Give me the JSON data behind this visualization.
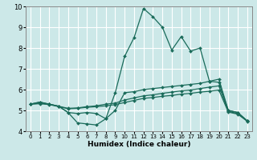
{
  "xlabel": "Humidex (Indice chaleur)",
  "x_values": [
    0,
    1,
    2,
    3,
    4,
    5,
    6,
    7,
    8,
    9,
    10,
    11,
    12,
    13,
    14,
    15,
    16,
    17,
    18,
    19,
    20,
    21,
    22,
    23
  ],
  "line1": [
    5.3,
    5.4,
    5.3,
    5.2,
    4.9,
    4.4,
    4.35,
    4.3,
    4.6,
    5.85,
    7.6,
    8.5,
    9.9,
    9.5,
    9.0,
    7.9,
    8.55,
    7.85,
    8.0,
    6.4,
    6.35,
    5.0,
    4.9,
    4.5
  ],
  "line2": [
    5.3,
    5.4,
    5.3,
    5.2,
    4.9,
    4.85,
    4.9,
    4.85,
    4.6,
    5.0,
    5.85,
    5.9,
    6.0,
    6.05,
    6.1,
    6.15,
    6.2,
    6.25,
    6.3,
    6.4,
    6.5,
    5.0,
    4.9,
    4.5
  ],
  "line3": [
    5.3,
    5.35,
    5.3,
    5.2,
    5.1,
    5.12,
    5.18,
    5.22,
    5.3,
    5.35,
    5.5,
    5.6,
    5.7,
    5.75,
    5.82,
    5.88,
    5.94,
    5.98,
    6.05,
    6.12,
    6.18,
    4.95,
    4.85,
    4.5
  ],
  "line4": [
    5.3,
    5.32,
    5.28,
    5.18,
    5.08,
    5.1,
    5.15,
    5.18,
    5.22,
    5.28,
    5.38,
    5.48,
    5.58,
    5.62,
    5.68,
    5.72,
    5.78,
    5.82,
    5.88,
    5.92,
    5.98,
    4.92,
    4.82,
    4.48
  ],
  "line_color": "#1a6b5a",
  "bg_color": "#cce8e8",
  "grid_color": "#ffffff",
  "ylim": [
    4.0,
    10.0
  ],
  "xlim_min": -0.5,
  "xlim_max": 23.5,
  "yticks": [
    4,
    5,
    6,
    7,
    8,
    9,
    10
  ],
  "xticks": [
    0,
    1,
    2,
    3,
    4,
    5,
    6,
    7,
    8,
    9,
    10,
    11,
    12,
    13,
    14,
    15,
    16,
    17,
    18,
    19,
    20,
    21,
    22,
    23
  ],
  "tick_fontsize": 5.0,
  "xlabel_fontsize": 6.5,
  "ytick_fontsize": 6.0
}
